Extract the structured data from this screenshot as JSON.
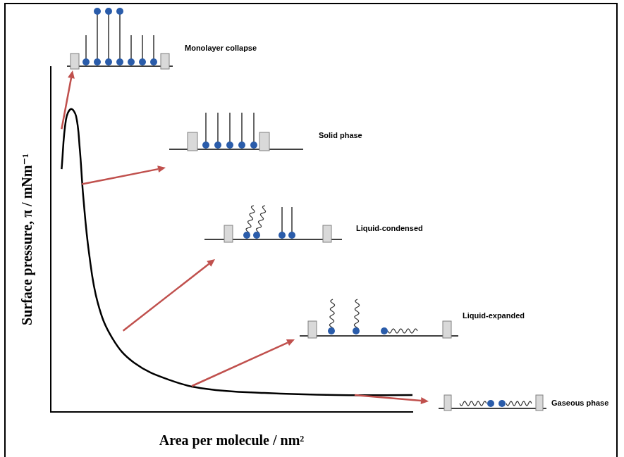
{
  "chart_data": {
    "type": "line",
    "x_label": "Area per molecule / nm²",
    "y_label": "Surface pressure, π / mNm⁻¹",
    "x": [
      3,
      4.2,
      5.6,
      7,
      8,
      9,
      10.6,
      13,
      17,
      23,
      33,
      43,
      59,
      79,
      100
    ],
    "values": [
      70.4,
      84.7,
      87.8,
      85.7,
      76.5,
      62.2,
      45.9,
      31.6,
      21.4,
      14.3,
      9.2,
      6.7,
      5.5,
      4.9,
      4.9
    ],
    "color": "#000000",
    "xlim": [
      0,
      100
    ],
    "ylim": [
      0,
      100
    ],
    "grid": false,
    "tick_labels": false,
    "annotations": [
      {
        "text": "Monolayer collapse",
        "x": 3,
        "y": 82
      },
      {
        "text": "Solid phase",
        "x": 8.6,
        "y": 66
      },
      {
        "text": "Liquid-condensed",
        "x": 20,
        "y": 23.5
      },
      {
        "text": "Liquid-expanded",
        "x": 39,
        "y": 7.5
      },
      {
        "text": "Gaseous phase",
        "x": 84,
        "y": 4.9
      }
    ]
  }
}
